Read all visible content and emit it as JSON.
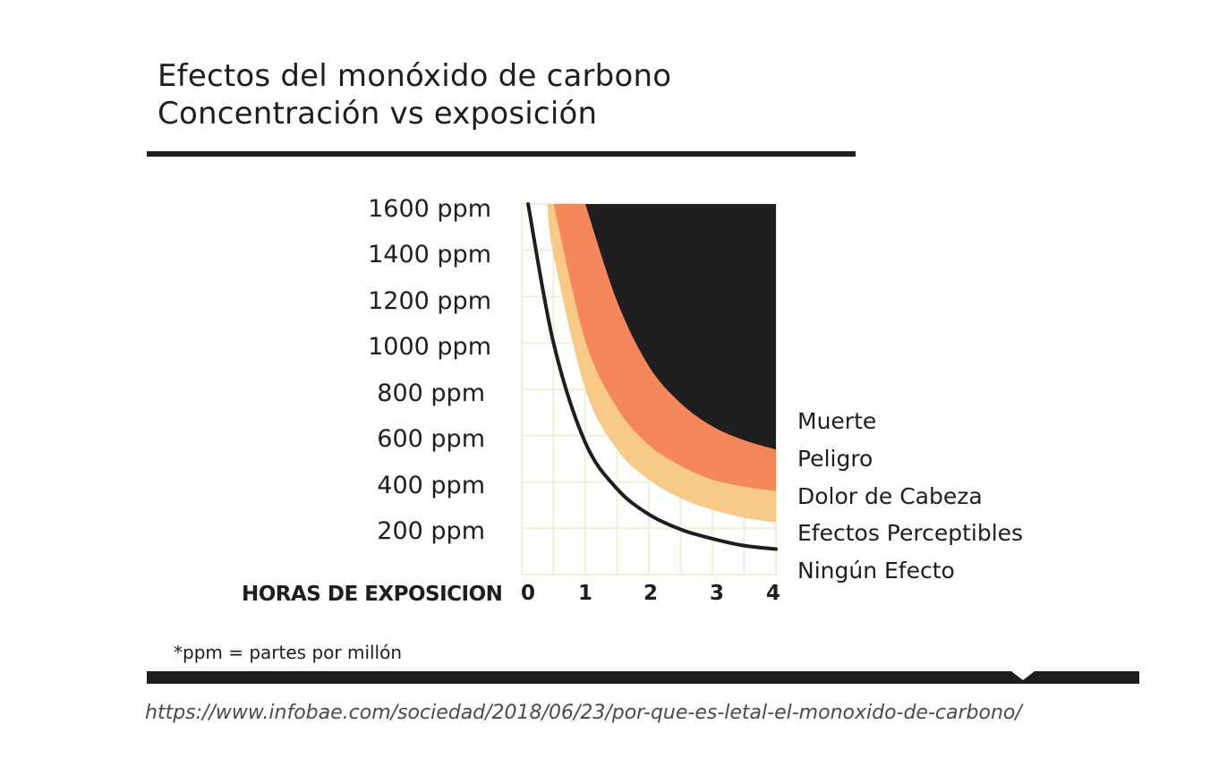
{
  "title_line1": "Efectos del monóxido de carbono",
  "title_line2": "Concentración vs exposición",
  "footnote": "*ppm = partes por millón",
  "source": "https://www.infobae.com/sociedad/2018/06/23/por-que-es-letal-el-monoxido-de-carbono/",
  "colors": {
    "text": "#1e1e1e",
    "grid": "#eef0d8",
    "muerte": "#1e1e1e",
    "peligro": "#f5875a",
    "dolor_de_cabeza": "#f7ca88",
    "efectos_perceptibles": "#ffffff",
    "ningun_efecto_line": "#1e1e1e"
  },
  "chart_data": {
    "type": "area",
    "xlabel": "HORAS DE EXPOSICION",
    "ylabel": "",
    "x_ticks": [
      "0",
      "1",
      "2",
      "3",
      "4"
    ],
    "y_ticks": [
      "200 ppm",
      "400 ppm",
      "600 ppm",
      "800 ppm",
      "1000 ppm",
      "1200 ppm",
      "1400 ppm",
      "1600 ppm"
    ],
    "xlim": [
      0,
      4
    ],
    "ylim": [
      0,
      1600
    ],
    "legend_position": "right",
    "legend": [
      "Muerte",
      "Peligro",
      "Dolor de Cabeza",
      "Efectos Perceptibles",
      "Ningún Efecto"
    ],
    "series": [
      {
        "name": "Muerte",
        "x": [
          1.0,
          1.5,
          2.0,
          2.5,
          3.0,
          3.5,
          4.0
        ],
        "y": [
          1600,
          1180,
          900,
          740,
          640,
          580,
          540
        ]
      },
      {
        "name": "Peligro",
        "x": [
          0.5,
          1.0,
          1.5,
          2.0,
          2.5,
          3.0,
          3.5,
          4.0
        ],
        "y": [
          1600,
          1010,
          720,
          560,
          470,
          410,
          380,
          360
        ]
      },
      {
        "name": "Dolor de Cabeza",
        "x": [
          0.4,
          0.5,
          1.0,
          1.5,
          2.0,
          2.5,
          3.0,
          3.5,
          4.0
        ],
        "y": [
          1600,
          1380,
          800,
          540,
          410,
          330,
          280,
          245,
          225
        ]
      },
      {
        "name": "Ningún Efecto",
        "x": [
          0.1,
          0.5,
          1.0,
          1.5,
          2.0,
          2.5,
          3.0,
          3.5,
          4.0
        ],
        "y": [
          1600,
          1000,
          570,
          370,
          260,
          195,
          155,
          125,
          110
        ]
      }
    ]
  }
}
